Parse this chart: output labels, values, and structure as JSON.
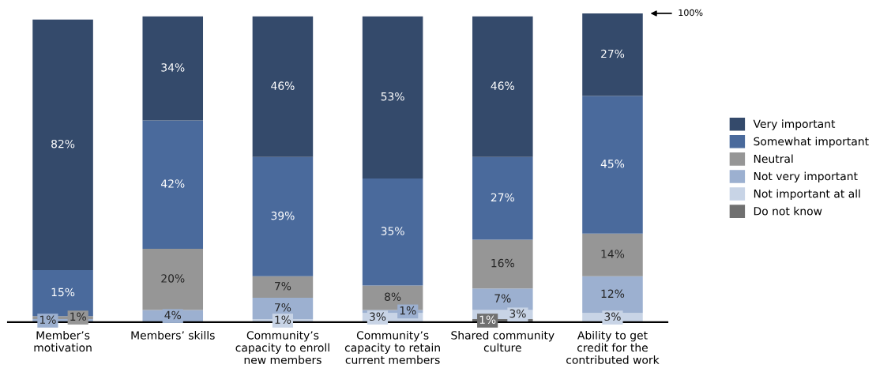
{
  "chart_data": {
    "type": "bar",
    "stacked": true,
    "categories": [
      "Member’s\nmotivation",
      "Members’ skills",
      "Community’s\ncapacity to enroll\nnew members",
      "Community’s\ncapacity to retain\ncurrent members",
      "Shared community\nculture",
      "Ability to get\ncredit for the\ncontributed work"
    ],
    "series": [
      {
        "name": "Do not know",
        "color": "#707070",
        "values": [
          null,
          null,
          null,
          null,
          1,
          null
        ],
        "value_labels": [
          null,
          null,
          null,
          null,
          "1%",
          null
        ]
      },
      {
        "name": "Not important at all",
        "color": "#c8d4e6",
        "values": [
          null,
          null,
          1,
          3,
          3,
          3
        ],
        "value_labels": [
          null,
          null,
          "1%",
          "3%",
          "3%",
          "3%"
        ]
      },
      {
        "name": "Not very important",
        "color": "#9cb0d0",
        "values": [
          1,
          4,
          7,
          1,
          7,
          12
        ],
        "value_labels": [
          "1%",
          "4%",
          "7%",
          "1%",
          "7%",
          "12%"
        ]
      },
      {
        "name": "Neutral",
        "color": "#969696",
        "values": [
          1,
          20,
          7,
          8,
          16,
          14
        ],
        "value_labels": [
          "1%",
          "20%",
          "7%",
          "8%",
          "16%",
          "14%"
        ]
      },
      {
        "name": "Somewhat important",
        "color": "#4a6a9c",
        "values": [
          15,
          42,
          39,
          35,
          27,
          45
        ],
        "value_labels": [
          "15%",
          "42%",
          "39%",
          "35%",
          "27%",
          "45%"
        ]
      },
      {
        "name": "Very important",
        "color": "#344a6b",
        "values": [
          82,
          34,
          46,
          53,
          46,
          27
        ],
        "value_labels": [
          "82%",
          "34%",
          "46%",
          "53%",
          "46%",
          "27%"
        ]
      }
    ],
    "ylim": [
      0,
      101
    ],
    "tick_labels": "x",
    "grid": false,
    "legend": "right",
    "annotations": [
      "100%"
    ]
  }
}
